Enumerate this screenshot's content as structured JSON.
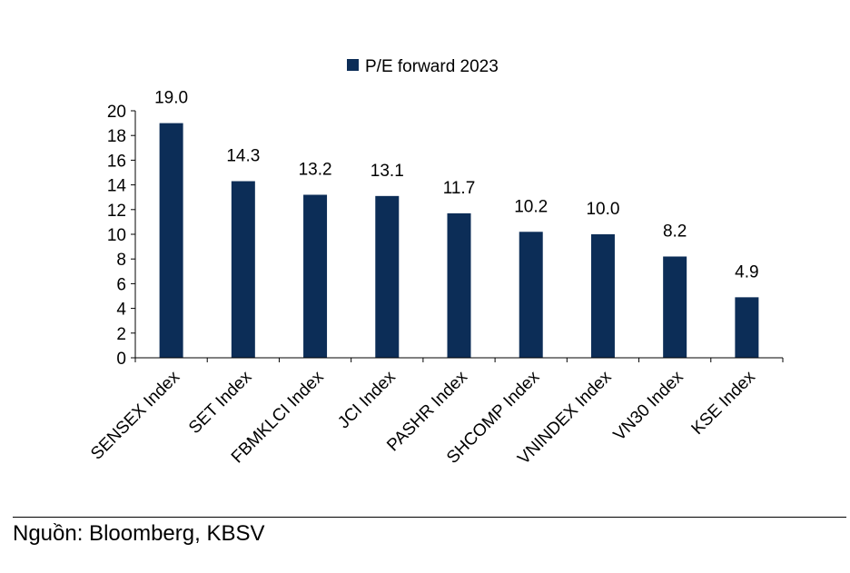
{
  "chart_data": {
    "type": "bar",
    "title": "",
    "xlabel": "",
    "ylabel": "",
    "ylim": [
      0,
      20
    ],
    "yticks": [
      0,
      2,
      4,
      6,
      8,
      10,
      12,
      14,
      16,
      18,
      20
    ],
    "grid": false,
    "legend_position": "top-center",
    "series": [
      {
        "name": "P/E forward 2023",
        "color": "#0c2d57",
        "values": [
          19.0,
          14.3,
          13.2,
          13.1,
          11.7,
          10.2,
          10.0,
          8.2,
          4.9
        ],
        "value_labels": [
          "19.0",
          "14.3",
          "13.2",
          "13.1",
          "11.7",
          "10.2",
          "10.0",
          "8.2",
          "4.9"
        ]
      }
    ],
    "categories": [
      "SENSEX Index",
      "SET Index",
      "FBMKLCI Index",
      "JCI Index",
      "PASHR Index",
      "SHCOMP Index",
      "VNINDEX Index",
      "VN30 Index",
      "KSE Index"
    ]
  },
  "source": {
    "text": "Nguồn: Bloomberg, KBSV"
  }
}
